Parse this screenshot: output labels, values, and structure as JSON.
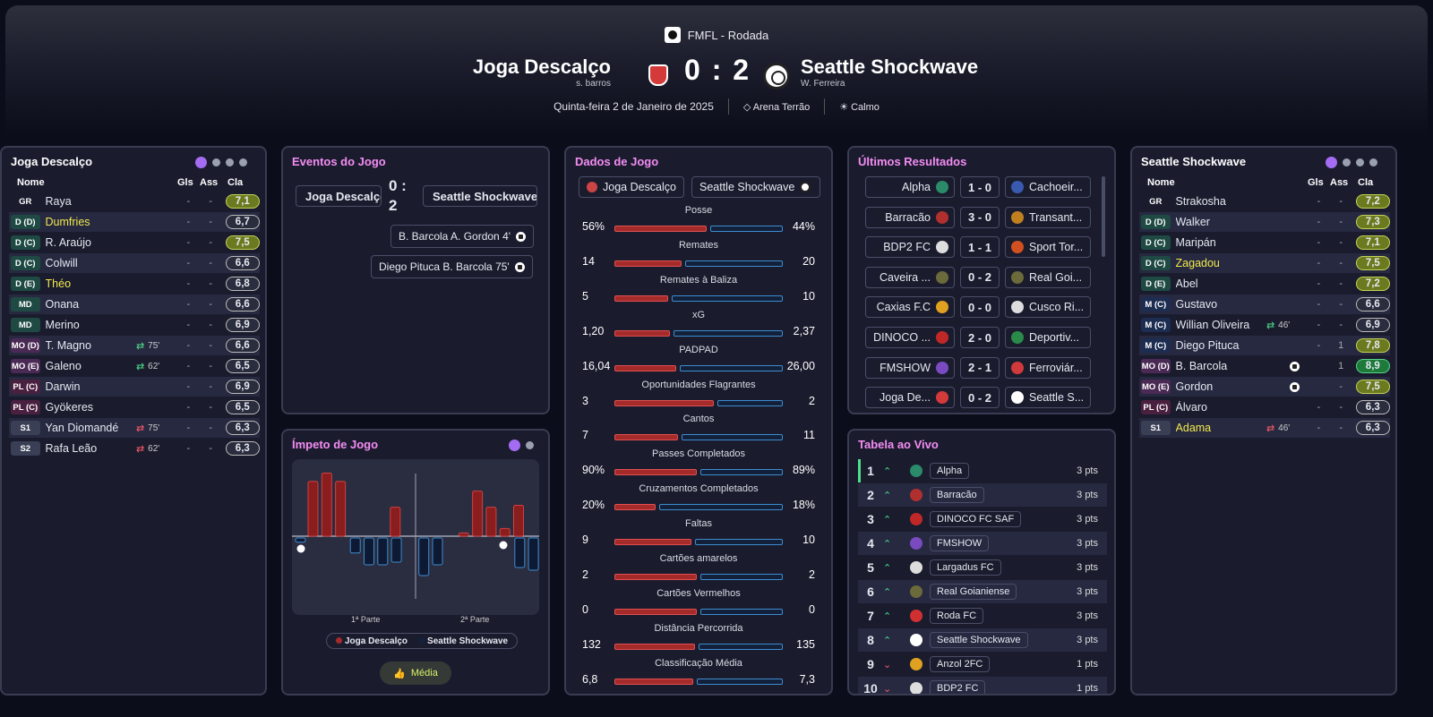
{
  "header": {
    "competition": "FMFL - Rodada",
    "home": {
      "name": "Joga Descalço",
      "manager": "s. barros"
    },
    "away": {
      "name": "Seattle Shockwave",
      "manager": "W. Ferreira"
    },
    "score": "0 : 2",
    "date": "Quinta-feira 2 de Janeiro de 2025",
    "stadium": "Arena Terrão",
    "weather": "Calmo"
  },
  "home_panel": {
    "title": "Joga Descalço",
    "cols": {
      "name": "Nome",
      "gls": "Gls",
      "ass": "Ass",
      "cla": "Cla"
    },
    "players": [
      {
        "pos": "GR",
        "name": "Raya",
        "sub": "",
        "gls": "-",
        "ass": "-",
        "rating": "7,1"
      },
      {
        "pos": "D (D)",
        "name": "Dumfries",
        "sub": "",
        "gls": "-",
        "ass": "-",
        "rating": "6,7"
      },
      {
        "pos": "D (C)",
        "name": "R. Araújo",
        "sub": "",
        "gls": "-",
        "ass": "-",
        "rating": "7,5"
      },
      {
        "pos": "D (C)",
        "name": "Colwill",
        "sub": "",
        "gls": "-",
        "ass": "-",
        "rating": "6,6"
      },
      {
        "pos": "D (E)",
        "name": "Théo",
        "sub": "",
        "gls": "-",
        "ass": "-",
        "rating": "6,8"
      },
      {
        "pos": "MD",
        "name": "Onana",
        "sub": "",
        "gls": "-",
        "ass": "-",
        "rating": "6,6"
      },
      {
        "pos": "MD",
        "name": "Merino",
        "sub": "",
        "gls": "-",
        "ass": "-",
        "rating": "6,9"
      },
      {
        "pos": "MO (D)",
        "name": "T. Magno",
        "sub": "75'",
        "gls": "-",
        "ass": "-",
        "rating": "6,6"
      },
      {
        "pos": "MO (E)",
        "name": "Galeno",
        "sub": "62'",
        "gls": "-",
        "ass": "-",
        "rating": "6,5"
      },
      {
        "pos": "PL (C)",
        "name": "Darwin",
        "sub": "",
        "gls": "-",
        "ass": "-",
        "rating": "6,9"
      },
      {
        "pos": "PL (C)",
        "name": "Gyökeres",
        "sub": "",
        "gls": "-",
        "ass": "-",
        "rating": "6,5"
      },
      {
        "pos": "S1",
        "name": "Yan Diomandé",
        "sub": "75'",
        "gls": "-",
        "ass": "-",
        "rating": "6,3"
      },
      {
        "pos": "S2",
        "name": "Rafa Leão",
        "sub": "62'",
        "gls": "-",
        "ass": "-",
        "rating": "6,3"
      }
    ]
  },
  "events": {
    "title": "Eventos do Jogo",
    "home": "Joga Descalço",
    "away": "Seattle Shockwave",
    "score_top": "0 :",
    "score_bottom": "2",
    "goals": [
      {
        "text": "B. Barcola  A. Gordon 4'"
      },
      {
        "text": "Diego Pituca  B. Barcola 75'"
      }
    ]
  },
  "momentum": {
    "title": "Ímpeto de Jogo",
    "half1": "1ª Parte",
    "half2": "2ª Parte",
    "legend_home": "Joga Descalço",
    "legend_away": "Seattle Shockwave",
    "button": "Média",
    "home_bars": [
      0.85,
      0.98,
      0.85,
      0,
      0,
      0,
      0.45,
      0,
      0,
      0,
      0,
      0.05,
      0.7,
      0.45,
      0.12,
      0.48
    ],
    "away_bars": [
      0.08,
      0,
      0,
      0,
      0.28,
      0.5,
      0.5,
      0.45,
      0,
      0.7,
      0.5,
      0,
      0,
      0,
      0,
      0,
      0.55,
      0.6
    ]
  },
  "stats": {
    "title": "Dados de Jogo",
    "home": "Joga Descalço",
    "away": "Seattle Shockwave",
    "rows": [
      {
        "label": "Posse",
        "h": "56%",
        "a": "44%",
        "hf": 0.56
      },
      {
        "label": "Remates",
        "h": "14",
        "a": "20",
        "hf": 0.41
      },
      {
        "label": "Remates à Baliza",
        "h": "5",
        "a": "10",
        "hf": 0.33
      },
      {
        "label": "xG",
        "h": "1,20",
        "a": "2,37",
        "hf": 0.34
      },
      {
        "label": "PADPAD",
        "h": "16,04",
        "a": "26,00",
        "hf": 0.38
      },
      {
        "label": "Oportunidades Flagrantes",
        "h": "3",
        "a": "2",
        "hf": 0.6
      },
      {
        "label": "Cantos",
        "h": "7",
        "a": "11",
        "hf": 0.39
      },
      {
        "label": "Passes Completados",
        "h": "90%",
        "a": "89%",
        "hf": 0.5
      },
      {
        "label": "Cruzamentos Completados",
        "h": "20%",
        "a": "18%",
        "hf": 0.26
      },
      {
        "label": "Faltas",
        "h": "9",
        "a": "10",
        "hf": 0.47
      },
      {
        "label": "Cartões amarelos",
        "h": "2",
        "a": "2",
        "hf": 0.5
      },
      {
        "label": "Cartões Vermelhos",
        "h": "0",
        "a": "0",
        "hf": 0.5
      },
      {
        "label": "Distância Percorrida",
        "h": "132",
        "a": "135",
        "hf": 0.49
      },
      {
        "label": "Classificação Média",
        "h": "6,8",
        "a": "7,3",
        "hf": 0.48
      }
    ]
  },
  "results": {
    "title": "Últimos Resultados",
    "rows": [
      {
        "home": "Alpha",
        "score": "1 - 0",
        "away": "Cachoeir..."
      },
      {
        "home": "Barracão",
        "score": "3 - 0",
        "away": "Transant..."
      },
      {
        "home": "BDP2 FC",
        "score": "1 - 1",
        "away": "Sport Tor..."
      },
      {
        "home": "Caveira ...",
        "score": "0 - 2",
        "away": "Real Goi..."
      },
      {
        "home": "Caxias F.C",
        "score": "0 - 0",
        "away": "Cusco Ri..."
      },
      {
        "home": "DINOCO ...",
        "score": "2 - 0",
        "away": "Deportiv..."
      },
      {
        "home": "FMSHOW",
        "score": "2 - 1",
        "away": "Ferroviár..."
      },
      {
        "home": "Joga De...",
        "score": "0 - 2",
        "away": "Seattle S..."
      }
    ]
  },
  "table": {
    "title": "Tabela ao Vivo",
    "rows": [
      {
        "pos": "1",
        "team": "Alpha",
        "pts": "3 pts",
        "dir": "up",
        "color": "#2a8a6a"
      },
      {
        "pos": "2",
        "team": "Barracão",
        "pts": "3 pts",
        "dir": "up",
        "color": "#b03030"
      },
      {
        "pos": "3",
        "team": "DINOCO FC SAF",
        "pts": "3 pts",
        "dir": "up",
        "color": "#c02828"
      },
      {
        "pos": "4",
        "team": "FMSHOW",
        "pts": "3 pts",
        "dir": "up",
        "color": "#7a4ac0"
      },
      {
        "pos": "5",
        "team": "Largadus FC",
        "pts": "3 pts",
        "dir": "up",
        "color": "#dddddd"
      },
      {
        "pos": "6",
        "team": "Real Goianiense",
        "pts": "3 pts",
        "dir": "up",
        "color": "#6a6a3a"
      },
      {
        "pos": "7",
        "team": "Roda FC",
        "pts": "3 pts",
        "dir": "up",
        "color": "#d03030"
      },
      {
        "pos": "8",
        "team": "Seattle Shockwave",
        "pts": "3 pts",
        "dir": "up",
        "color": "#ffffff"
      },
      {
        "pos": "9",
        "team": "Anzol 2FC",
        "pts": "1 pts",
        "dir": "down",
        "color": "#e0a020"
      },
      {
        "pos": "10",
        "team": "BDP2 FC",
        "pts": "1 pts",
        "dir": "down",
        "color": "#dddddd"
      }
    ]
  },
  "away_panel": {
    "title": "Seattle Shockwave",
    "cols": {
      "name": "Nome",
      "gls": "Gls",
      "ass": "Ass",
      "cla": "Cla"
    },
    "players": [
      {
        "pos": "GR",
        "name": "Strakosha",
        "sub": "",
        "gls": "-",
        "ass": "-",
        "rating": "7,2"
      },
      {
        "pos": "D (D)",
        "name": "Walker",
        "sub": "",
        "gls": "-",
        "ass": "-",
        "rating": "7,3"
      },
      {
        "pos": "D (C)",
        "name": "Maripán",
        "sub": "",
        "gls": "-",
        "ass": "-",
        "rating": "7,1"
      },
      {
        "pos": "D (C)",
        "name": "Zagadou",
        "sub": "",
        "gls": "-",
        "ass": "-",
        "rating": "7,5"
      },
      {
        "pos": "D (E)",
        "name": "Abel",
        "sub": "",
        "gls": "-",
        "ass": "-",
        "rating": "7,2"
      },
      {
        "pos": "M (C)",
        "name": "Gustavo",
        "sub": "",
        "gls": "-",
        "ass": "-",
        "rating": "6,6"
      },
      {
        "pos": "M (C)",
        "name": "Willian Oliveira",
        "sub": "46'",
        "gls": "-",
        "ass": "-",
        "rating": "6,9"
      },
      {
        "pos": "M (C)",
        "name": "Diego Pituca",
        "sub": "",
        "gls": "-",
        "ass": "1",
        "rating": "7,8"
      },
      {
        "pos": "MO (D)",
        "name": "B. Barcola",
        "sub": "",
        "gls": "",
        "ass": "1",
        "rating": "8,9"
      },
      {
        "pos": "MO (E)",
        "name": "Gordon",
        "sub": "",
        "gls": "",
        "ass": "-",
        "rating": "7,5"
      },
      {
        "pos": "PL (C)",
        "name": "Álvaro",
        "sub": "",
        "gls": "-",
        "ass": "-",
        "rating": "6,3"
      },
      {
        "pos": "S1",
        "name": "Adama",
        "sub": "46'",
        "gls": "-",
        "ass": "-",
        "rating": "6,3"
      }
    ]
  }
}
